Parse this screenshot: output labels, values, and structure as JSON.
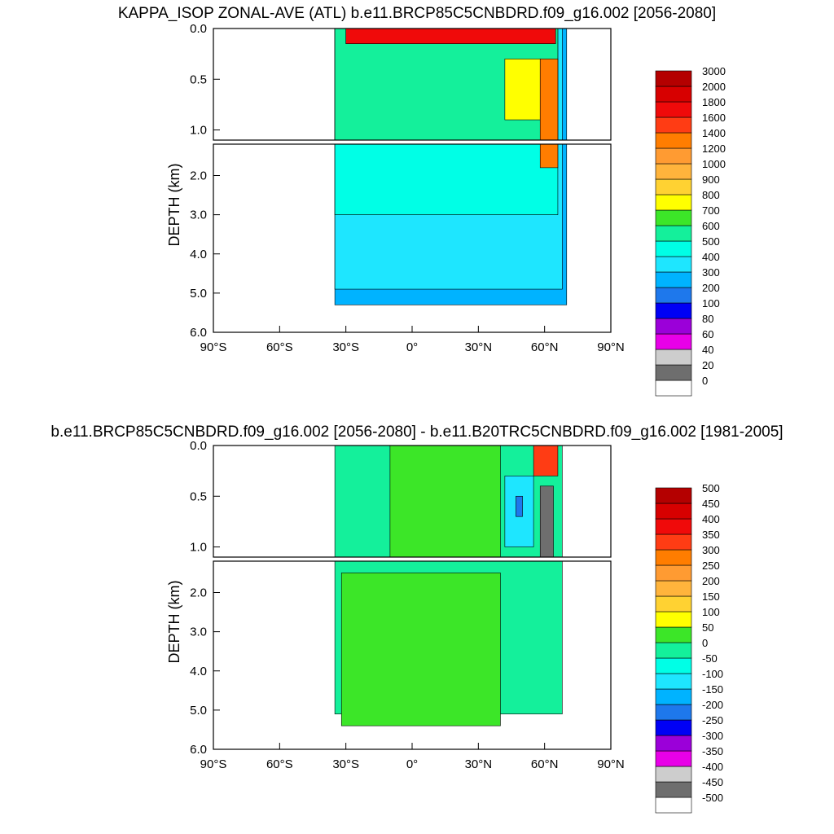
{
  "chart_data": [
    {
      "type": "heatmap",
      "title": "KAPPA_ISOP ZONAL-AVE (ATL) b.e11.BRCP85C5CNBDRD.f09_g16.002 [2056-2080]",
      "xlabel": "",
      "ylabel": "DEPTH (km)",
      "x_ticks": [
        "90°S",
        "60°S",
        "30°S",
        "0°",
        "30°N",
        "60°N",
        "90°N"
      ],
      "y_ticks_upper": [
        "0.0",
        "0.5",
        "1.0"
      ],
      "y_ticks_lower": [
        "2.0",
        "3.0",
        "4.0",
        "5.0",
        "6.0"
      ],
      "xlim": [
        -90,
        90
      ],
      "ylim_km": [
        0,
        6
      ],
      "colorbar": {
        "labels": [
          "0",
          "20",
          "40",
          "60",
          "80",
          "100",
          "200",
          "300",
          "400",
          "500",
          "600",
          "700",
          "800",
          "900",
          "1000",
          "1200",
          "1400",
          "1600",
          "1800",
          "2000",
          "3000"
        ],
        "colors": [
          "#ffffff",
          "#6e6e6e",
          "#cdcdcd",
          "#e800e8",
          "#9b00d9",
          "#0000f5",
          "#1e78ec",
          "#00b3ff",
          "#1ee6ff",
          "#00ffe6",
          "#14f09b",
          "#3ce628",
          "#ffff00",
          "#ffd232",
          "#ffb43c",
          "#ff9b32",
          "#ff7d00",
          "#ff3c14",
          "#f00a0a",
          "#d70000",
          "#b40000"
        ]
      },
      "regions": [
        {
          "level": "200",
          "lat": [
            -35,
            70
          ],
          "depth_km": [
            0,
            5.3
          ]
        },
        {
          "level": "300",
          "lat": [
            -35,
            68
          ],
          "depth_km": [
            0,
            4.9
          ]
        },
        {
          "level": "400",
          "lat": [
            -35,
            66
          ],
          "depth_km": [
            0,
            3.0
          ]
        },
        {
          "level": "500",
          "lat": [
            -35,
            66
          ],
          "depth_km": [
            0,
            1.1
          ]
        },
        {
          "level": "700",
          "lat": [
            42,
            58
          ],
          "depth_km": [
            0.3,
            0.9
          ]
        },
        {
          "level": "1200",
          "lat": [
            58,
            66
          ],
          "depth_km": [
            0.3,
            1.8
          ]
        },
        {
          "level": "1600",
          "lat": [
            -30,
            65
          ],
          "depth_km": [
            0,
            0.15
          ]
        }
      ]
    },
    {
      "type": "heatmap",
      "title": "b.e11.BRCP85C5CNBDRD.f09_g16.002 [2056-2080] - b.e11.B20TRC5CNBDRD.f09_g16.002 [1981-2005]",
      "xlabel": "",
      "ylabel": "DEPTH (km)",
      "x_ticks": [
        "90°S",
        "60°S",
        "30°S",
        "0°",
        "30°N",
        "60°N",
        "90°N"
      ],
      "y_ticks_upper": [
        "0.0",
        "0.5",
        "1.0"
      ],
      "y_ticks_lower": [
        "2.0",
        "3.0",
        "4.0",
        "5.0",
        "6.0"
      ],
      "xlim": [
        -90,
        90
      ],
      "ylim_km": [
        0,
        6
      ],
      "colorbar": {
        "labels": [
          "-500",
          "-450",
          "-400",
          "-350",
          "-300",
          "-250",
          "-200",
          "-150",
          "-100",
          "-50",
          "0",
          "50",
          "100",
          "150",
          "200",
          "250",
          "300",
          "350",
          "400",
          "450",
          "500"
        ],
        "colors": [
          "#ffffff",
          "#6e6e6e",
          "#cdcdcd",
          "#e800e8",
          "#9b00d9",
          "#0000f5",
          "#1e78ec",
          "#00b3ff",
          "#1ee6ff",
          "#00ffe6",
          "#14f09b",
          "#3ce628",
          "#ffff00",
          "#ffd232",
          "#ffb43c",
          "#ff9b32",
          "#ff7d00",
          "#ff3c14",
          "#f00a0a",
          "#d70000",
          "#b40000"
        ]
      },
      "regions": [
        {
          "level": "-50",
          "lat": [
            -35,
            68
          ],
          "depth_km": [
            0,
            5.1
          ]
        },
        {
          "level": "0",
          "lat": [
            -32,
            40
          ],
          "depth_km": [
            1.5,
            5.4
          ]
        },
        {
          "level": "0",
          "lat": [
            -10,
            40
          ],
          "depth_km": [
            0,
            1.1
          ]
        },
        {
          "level": "-150",
          "lat": [
            42,
            55
          ],
          "depth_km": [
            0.3,
            1.0
          ]
        },
        {
          "level": "-250",
          "lat": [
            47,
            50
          ],
          "depth_km": [
            0.5,
            0.7
          ]
        },
        {
          "level": "-500",
          "lat": [
            58,
            64
          ],
          "depth_km": [
            0.4,
            1.1
          ]
        },
        {
          "level": "300",
          "lat": [
            55,
            66
          ],
          "depth_km": [
            0,
            0.3
          ]
        }
      ]
    }
  ]
}
